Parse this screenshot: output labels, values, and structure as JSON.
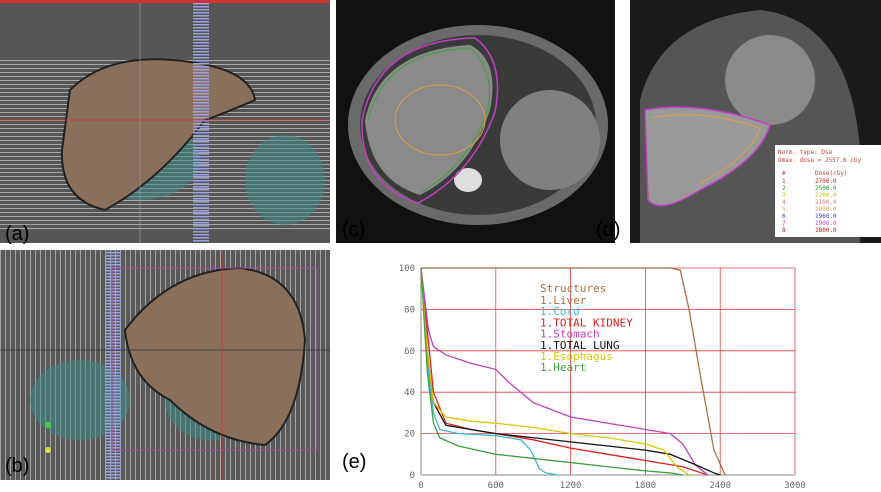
{
  "panels": {
    "a": "(a)",
    "b": "(b)",
    "c": "(c)",
    "d": "(d)",
    "e": "(e)"
  },
  "panel_d_table": {
    "norm": "Norm. type: Dse",
    "max": "Omax. dose = 2557.6 cGy",
    "head_n": "#",
    "head_dose": "Dose(cGy)",
    "rows": [
      {
        "n": "1",
        "dose": "2700.0",
        "color": "#d02020"
      },
      {
        "n": "2",
        "dose": "2500.0",
        "color": "#20a020"
      },
      {
        "n": "3",
        "dose": "2200.0",
        "color": "#d0c020"
      },
      {
        "n": "4",
        "dose": "2100.0",
        "color": "#e08080"
      },
      {
        "n": "5",
        "dose": "2000.0",
        "color": "#e0a040"
      },
      {
        "n": "6",
        "dose": "1960.0",
        "color": "#4040c0"
      },
      {
        "n": "7",
        "dose": "1900.0",
        "color": "#c040c0"
      },
      {
        "n": "8",
        "dose": "1800.0",
        "color": "#a02020"
      }
    ]
  },
  "chart_data": {
    "type": "line",
    "legend_title": "Structures",
    "xlim": [
      0,
      3000
    ],
    "xticks": [
      0,
      600,
      1200,
      1800,
      2400,
      3000
    ],
    "ylim": [
      0,
      100
    ],
    "yticks": [
      0,
      20,
      40,
      60,
      80,
      100
    ],
    "grid": true,
    "series": [
      {
        "name": "1.Liver",
        "color": "#b06e40",
        "x": [
          0,
          2000,
          2080,
          2150,
          2250,
          2350,
          2440
        ],
        "values": [
          100,
          100,
          99,
          80,
          45,
          12,
          0
        ]
      },
      {
        "name": "1.Cord",
        "color": "#3bb8d8",
        "x": [
          0,
          30,
          60,
          100,
          150,
          300,
          600,
          800,
          880,
          950,
          1000,
          1100
        ],
        "values": [
          100,
          80,
          50,
          30,
          22,
          20,
          19,
          17,
          12,
          3,
          1,
          0
        ]
      },
      {
        "name": "1.TOTAL KIDNEY",
        "color": "#e02020",
        "x": [
          0,
          50,
          100,
          200,
          400,
          600,
          900,
          1200,
          1500,
          1800,
          2100,
          2250,
          2300
        ],
        "values": [
          100,
          70,
          40,
          25,
          22,
          20,
          17,
          13,
          10,
          7,
          4,
          1,
          0
        ]
      },
      {
        "name": "1.Stomach",
        "color": "#c040c0",
        "x": [
          0,
          30,
          60,
          100,
          200,
          400,
          600,
          700,
          900,
          1200,
          1500,
          1800,
          2000,
          2100,
          2200,
          2300
        ],
        "values": [
          100,
          85,
          70,
          62,
          58,
          54,
          51,
          45,
          35,
          28,
          25,
          22,
          20,
          15,
          5,
          0
        ]
      },
      {
        "name": "1.TOTAL LUNG",
        "color": "#111111",
        "x": [
          0,
          50,
          100,
          200,
          400,
          600,
          900,
          1200,
          1500,
          1800,
          2000,
          2200,
          2350,
          2400
        ],
        "values": [
          100,
          60,
          35,
          24,
          22,
          20,
          18,
          16,
          14,
          12,
          10,
          5,
          1,
          0
        ]
      },
      {
        "name": "1.Esophagus",
        "color": "#d8c800",
        "x": [
          0,
          50,
          100,
          200,
          400,
          600,
          900,
          1200,
          1500,
          1800,
          1950,
          2050,
          2150
        ],
        "values": [
          100,
          60,
          35,
          28,
          26,
          25,
          23,
          20,
          18,
          15,
          12,
          4,
          0
        ]
      },
      {
        "name": "1.Heart",
        "color": "#40a040",
        "x": [
          0,
          50,
          100,
          150,
          300,
          600,
          900,
          1200,
          1500,
          1800,
          2000,
          2100
        ],
        "values": [
          100,
          50,
          25,
          18,
          14,
          10,
          8,
          6,
          4,
          2,
          1,
          0
        ]
      }
    ]
  }
}
